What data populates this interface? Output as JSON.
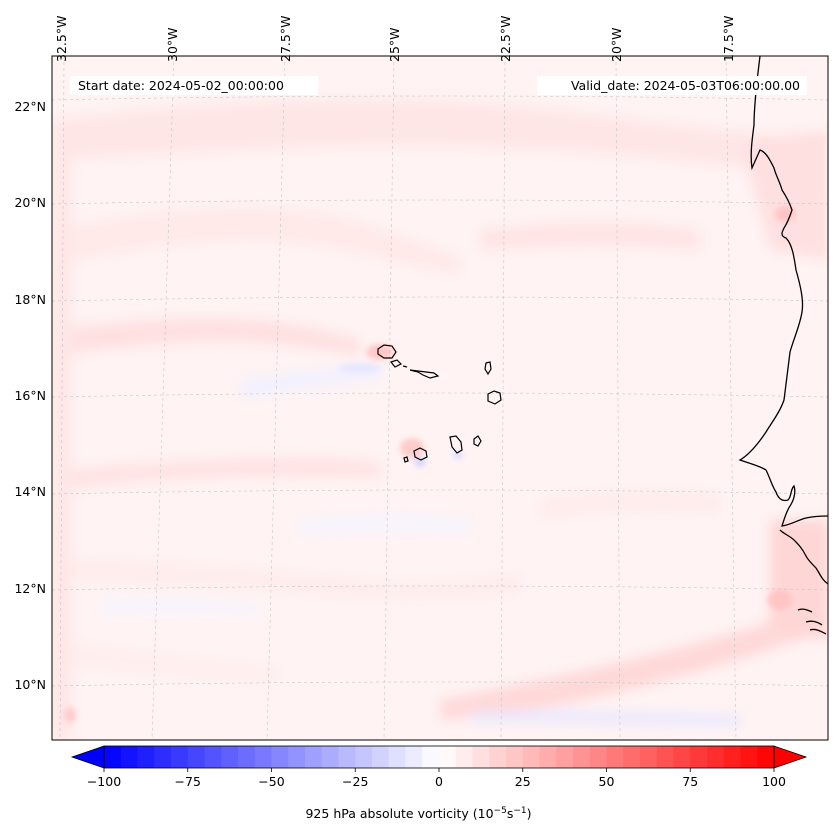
{
  "map": {
    "start_date": "Start date: 2024-05-02_00:00:00",
    "valid_date": "Valid_date: 2024-05-03T06:00:00.00",
    "lon_labels": [
      "32.5°W",
      "30°W",
      "27.5°W",
      "25°W",
      "22.5°W",
      "20°W",
      "17.5°W"
    ],
    "lat_labels": [
      "22°N",
      "20°N",
      "18°N",
      "16°N",
      "14°N",
      "12°N",
      "10°N"
    ],
    "extent": {
      "lon_min": -32.6,
      "lon_max": -15.4,
      "lat_min": 8.9,
      "lat_max": 22.8
    },
    "field": "925 hPa absolute vorticity",
    "gridlines": true
  },
  "colorbar": {
    "min": -100,
    "max": 100,
    "ticks": [
      "−100",
      "−75",
      "−50",
      "−25",
      "0",
      "25",
      "50",
      "75",
      "100"
    ],
    "label_prefix": "925 hPa absolute vorticity (10",
    "label_exp1": "−5",
    "label_mid": "s",
    "label_exp2": "−1",
    "label_suffix": ")",
    "colormap": "bwr",
    "neg_color": "#0000ff",
    "pos_color": "#ff0000",
    "extend": "both"
  }
}
